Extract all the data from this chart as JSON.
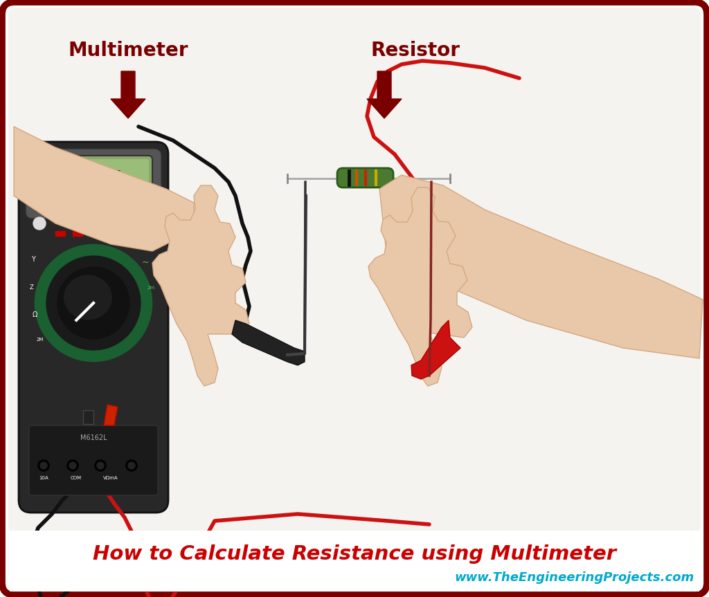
{
  "fig_width": 10.24,
  "fig_height": 8.63,
  "dpi": 100,
  "bg_color": "#ffffff",
  "border_color": "#7a0000",
  "photo_bg": "#f0eeec",
  "label_multimeter": "Multimeter",
  "label_resistor": "Resistor",
  "label_color": "#7a0000",
  "label_fontsize": 20,
  "label_fontweight": "bold",
  "title_text": "How to Calculate Resistance using Multimeter",
  "title_color": "#cc0000",
  "title_fontsize": 21,
  "title_fontweight": "bold",
  "website_text": "www.TheEngineeringProjects.com",
  "website_color": "#00aacc",
  "website_fontsize": 13,
  "website_fontweight": "bold",
  "arrow_color": "#7a0000",
  "skin_color": "#e8c8a8",
  "skin_shadow": "#d4a882",
  "mm_body_color": "#2a2a2a",
  "mm_lcd_color": "#9aac7a",
  "mm_knob_green": "#1a6030",
  "resistor_color": "#4a7a30",
  "wire_black": "#111111",
  "wire_red": "#cc1111"
}
